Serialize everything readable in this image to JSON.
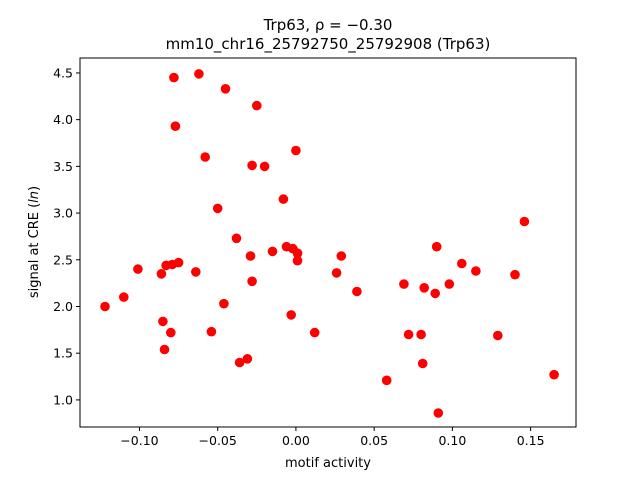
{
  "chart_data": {
    "type": "scatter",
    "title_line1": "Trp63, ρ = −0.30",
    "title_line2": "mm10_chr16_25792750_25792908 (Trp63)",
    "xlabel": "motif activity",
    "ylabel": "signal at CRE (ln)",
    "xlim": [
      -0.138,
      0.179
    ],
    "ylim": [
      0.71,
      4.66
    ],
    "xticks": [
      -0.1,
      -0.05,
      0.0,
      0.05,
      0.1,
      0.15
    ],
    "xtick_labels": [
      "−0.10",
      "−0.05",
      "0.00",
      "0.05",
      "0.10",
      "0.15"
    ],
    "yticks": [
      1.0,
      1.5,
      2.0,
      2.5,
      3.0,
      3.5,
      4.0,
      4.5
    ],
    "ytick_labels": [
      "1.0",
      "1.5",
      "2.0",
      "2.5",
      "3.0",
      "3.5",
      "4.0",
      "4.5"
    ],
    "marker_color": "#ff0000",
    "grid": false,
    "points": [
      {
        "x": -0.122,
        "y": 2.0
      },
      {
        "x": -0.11,
        "y": 2.1
      },
      {
        "x": -0.101,
        "y": 2.4
      },
      {
        "x": -0.086,
        "y": 2.35
      },
      {
        "x": -0.085,
        "y": 1.84
      },
      {
        "x": -0.084,
        "y": 1.54
      },
      {
        "x": -0.083,
        "y": 2.44
      },
      {
        "x": -0.08,
        "y": 1.72
      },
      {
        "x": -0.079,
        "y": 2.45
      },
      {
        "x": -0.078,
        "y": 4.45
      },
      {
        "x": -0.077,
        "y": 3.93
      },
      {
        "x": -0.075,
        "y": 2.47
      },
      {
        "x": -0.064,
        "y": 2.37
      },
      {
        "x": -0.062,
        "y": 4.49
      },
      {
        "x": -0.058,
        "y": 3.6
      },
      {
        "x": -0.054,
        "y": 1.73
      },
      {
        "x": -0.05,
        "y": 3.05
      },
      {
        "x": -0.046,
        "y": 2.03
      },
      {
        "x": -0.045,
        "y": 4.33
      },
      {
        "x": -0.038,
        "y": 2.73
      },
      {
        "x": -0.036,
        "y": 1.4
      },
      {
        "x": -0.031,
        "y": 1.44
      },
      {
        "x": -0.029,
        "y": 2.54
      },
      {
        "x": -0.028,
        "y": 3.51
      },
      {
        "x": -0.028,
        "y": 2.27
      },
      {
        "x": -0.025,
        "y": 4.15
      },
      {
        "x": -0.02,
        "y": 3.5
      },
      {
        "x": -0.015,
        "y": 2.59
      },
      {
        "x": -0.008,
        "y": 3.15
      },
      {
        "x": -0.006,
        "y": 2.64
      },
      {
        "x": -0.003,
        "y": 1.91
      },
      {
        "x": -0.002,
        "y": 2.62
      },
      {
        "x": 0.0,
        "y": 3.67
      },
      {
        "x": 0.001,
        "y": 2.57
      },
      {
        "x": 0.001,
        "y": 2.49
      },
      {
        "x": 0.012,
        "y": 1.72
      },
      {
        "x": 0.026,
        "y": 2.36
      },
      {
        "x": 0.029,
        "y": 2.54
      },
      {
        "x": 0.039,
        "y": 2.16
      },
      {
        "x": 0.058,
        "y": 1.21
      },
      {
        "x": 0.069,
        "y": 2.24
      },
      {
        "x": 0.072,
        "y": 1.7
      },
      {
        "x": 0.08,
        "y": 1.7
      },
      {
        "x": 0.081,
        "y": 1.39
      },
      {
        "x": 0.082,
        "y": 2.2
      },
      {
        "x": 0.089,
        "y": 2.14
      },
      {
        "x": 0.09,
        "y": 2.64
      },
      {
        "x": 0.091,
        "y": 0.86
      },
      {
        "x": 0.098,
        "y": 2.24
      },
      {
        "x": 0.106,
        "y": 2.46
      },
      {
        "x": 0.115,
        "y": 2.38
      },
      {
        "x": 0.129,
        "y": 1.69
      },
      {
        "x": 0.14,
        "y": 2.34
      },
      {
        "x": 0.146,
        "y": 2.91
      },
      {
        "x": 0.165,
        "y": 1.27
      }
    ]
  }
}
